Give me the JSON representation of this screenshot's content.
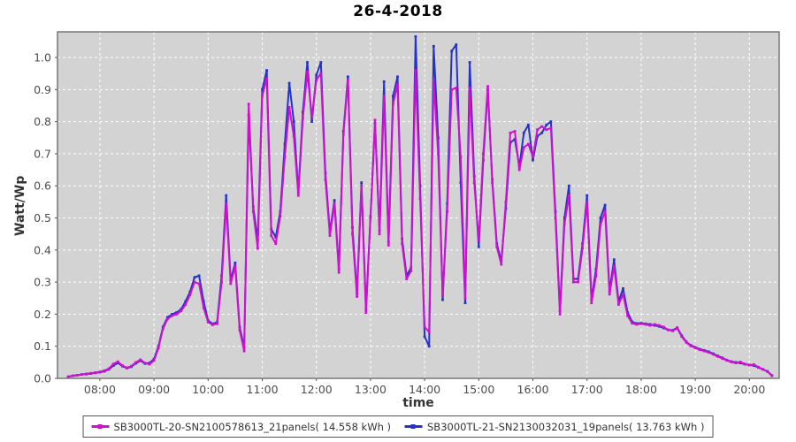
{
  "title": "26-4-2018",
  "chart_data": {
    "type": "line",
    "title": "26-4-2018",
    "xlabel": "time",
    "ylabel": "Watt/Wp",
    "x_ticks": [
      {
        "hour": 8,
        "label": "08:00"
      },
      {
        "hour": 9,
        "label": "09:00"
      },
      {
        "hour": 10,
        "label": "10:00"
      },
      {
        "hour": 11,
        "label": "11:00"
      },
      {
        "hour": 12,
        "label": "12:00"
      },
      {
        "hour": 13,
        "label": "13:00"
      },
      {
        "hour": 14,
        "label": "14:00"
      },
      {
        "hour": 15,
        "label": "15:00"
      },
      {
        "hour": 16,
        "label": "16:00"
      },
      {
        "hour": 17,
        "label": "17:00"
      },
      {
        "hour": 18,
        "label": "18:00"
      },
      {
        "hour": 19,
        "label": "19:00"
      },
      {
        "hour": 20,
        "label": "20:00"
      }
    ],
    "y_ticks": [
      {
        "value": 0.0,
        "label": "0.0"
      },
      {
        "value": 0.1,
        "label": "0.1"
      },
      {
        "value": 0.2,
        "label": "0.2"
      },
      {
        "value": 0.3,
        "label": "0.3"
      },
      {
        "value": 0.4,
        "label": "0.4"
      },
      {
        "value": 0.5,
        "label": "0.5"
      },
      {
        "value": 0.6,
        "label": "0.6"
      },
      {
        "value": 0.7,
        "label": "0.7"
      },
      {
        "value": 0.8,
        "label": "0.8"
      },
      {
        "value": 0.9,
        "label": "0.9"
      },
      {
        "value": 1.0,
        "label": "1.0"
      }
    ],
    "xlim_hours": [
      7.217,
      20.55
    ],
    "ylim": [
      0,
      1.08
    ],
    "grid": "white dashed on gray",
    "legend_position": "bottom",
    "plot_bg_color": "#d3d3d3",
    "grid_color": "#ffffff",
    "axis_text_color": "#4d4d4d",
    "x_start": "07:25",
    "x_interval_min": 5,
    "series": [
      {
        "name": "SB3000TL-20-SN2100578613_21panels( 14.558 kWh )",
        "energy_kwh": "14.558",
        "color": "#CF10CF",
        "values": [
          0.005,
          0.008,
          0.01,
          0.012,
          0.014,
          0.016,
          0.018,
          0.02,
          0.024,
          0.03,
          0.045,
          0.052,
          0.04,
          0.033,
          0.038,
          0.05,
          0.058,
          0.048,
          0.044,
          0.055,
          0.095,
          0.155,
          0.185,
          0.195,
          0.2,
          0.21,
          0.23,
          0.26,
          0.3,
          0.295,
          0.22,
          0.175,
          0.167,
          0.17,
          0.3,
          0.545,
          0.295,
          0.35,
          0.15,
          0.085,
          0.855,
          0.52,
          0.405,
          0.88,
          0.935,
          0.445,
          0.42,
          0.505,
          0.69,
          0.845,
          0.755,
          0.57,
          0.81,
          0.955,
          0.815,
          0.93,
          0.95,
          0.62,
          0.445,
          0.545,
          0.33,
          0.76,
          0.93,
          0.45,
          0.255,
          0.6,
          0.205,
          0.5,
          0.805,
          0.45,
          0.88,
          0.415,
          0.855,
          0.915,
          0.42,
          0.31,
          0.335,
          0.96,
          0.56,
          0.16,
          0.145,
          0.93,
          0.7,
          0.26,
          0.52,
          0.9,
          0.905,
          0.69,
          0.25,
          0.905,
          0.61,
          0.43,
          0.7,
          0.91,
          0.61,
          0.41,
          0.355,
          0.55,
          0.765,
          0.77,
          0.65,
          0.72,
          0.73,
          0.69,
          0.775,
          0.785,
          0.775,
          0.78,
          0.5,
          0.2,
          0.48,
          0.57,
          0.3,
          0.3,
          0.405,
          0.55,
          0.235,
          0.32,
          0.48,
          0.52,
          0.262,
          0.35,
          0.23,
          0.262,
          0.195,
          0.172,
          0.168,
          0.17,
          0.168,
          0.165,
          0.168,
          0.165,
          0.16,
          0.151,
          0.148,
          0.156,
          0.13,
          0.112,
          0.101,
          0.095,
          0.089,
          0.085,
          0.081,
          0.075,
          0.068,
          0.062,
          0.056,
          0.051,
          0.048,
          0.051,
          0.045,
          0.041,
          0.043,
          0.035,
          0.028,
          0.021,
          0.008
        ]
      },
      {
        "name": "SB3000TL-21-SN2130032031_19panels( 13.763 kWh )",
        "energy_kwh": "13.763",
        "color": "#2633C8",
        "values": [
          0.005,
          0.008,
          0.01,
          0.012,
          0.013,
          0.015,
          0.017,
          0.019,
          0.022,
          0.028,
          0.04,
          0.048,
          0.038,
          0.032,
          0.036,
          0.047,
          0.055,
          0.046,
          0.048,
          0.06,
          0.1,
          0.16,
          0.19,
          0.2,
          0.205,
          0.215,
          0.24,
          0.27,
          0.315,
          0.32,
          0.24,
          0.18,
          0.17,
          0.175,
          0.32,
          0.57,
          0.305,
          0.36,
          0.16,
          0.095,
          0.82,
          0.535,
          0.43,
          0.9,
          0.96,
          0.465,
          0.44,
          0.52,
          0.73,
          0.92,
          0.8,
          0.58,
          0.83,
          0.985,
          0.8,
          0.945,
          0.985,
          0.64,
          0.455,
          0.555,
          0.34,
          0.77,
          0.94,
          0.47,
          0.265,
          0.61,
          0.215,
          0.505,
          0.795,
          0.46,
          0.925,
          0.425,
          0.88,
          0.94,
          0.435,
          0.32,
          0.345,
          1.065,
          0.6,
          0.13,
          0.1,
          1.035,
          0.75,
          0.245,
          0.545,
          1.02,
          1.04,
          0.61,
          0.235,
          0.985,
          0.63,
          0.41,
          0.68,
          0.9,
          0.62,
          0.42,
          0.365,
          0.53,
          0.735,
          0.745,
          0.66,
          0.765,
          0.79,
          0.68,
          0.755,
          0.765,
          0.79,
          0.8,
          0.52,
          0.21,
          0.5,
          0.6,
          0.31,
          0.31,
          0.42,
          0.57,
          0.245,
          0.34,
          0.5,
          0.54,
          0.272,
          0.37,
          0.24,
          0.28,
          0.205,
          0.176,
          0.171,
          0.172,
          0.17,
          0.168,
          0.165,
          0.162,
          0.157,
          0.151,
          0.15,
          0.158,
          0.133,
          0.114,
          0.103,
          0.097,
          0.091,
          0.087,
          0.083,
          0.077,
          0.07,
          0.064,
          0.057,
          0.052,
          0.05,
          0.048,
          0.044,
          0.042,
          0.04,
          0.034,
          0.028,
          0.022,
          0.009
        ]
      }
    ]
  }
}
